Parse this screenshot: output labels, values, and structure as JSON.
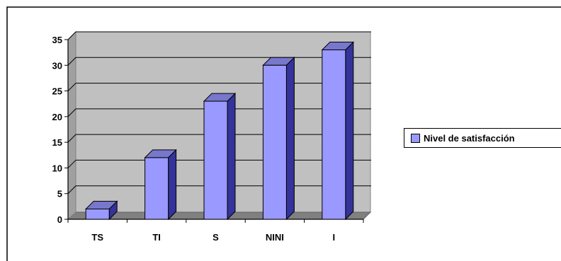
{
  "chart_data": {
    "type": "bar",
    "categories": [
      "TS",
      "TI",
      "S",
      "NINI",
      "I"
    ],
    "series": [
      {
        "name": "Nivel de satisfacción",
        "values": [
          2,
          12,
          23,
          30,
          33
        ]
      }
    ],
    "ylim": [
      0,
      35
    ],
    "yticks": [
      0,
      5,
      10,
      15,
      20,
      25,
      30,
      35
    ],
    "grid": true,
    "legend": "right",
    "colors": {
      "bar": "#9999ff",
      "bar_side": "#33339a",
      "bar_top": "#7777cc",
      "plot_bg": "#c0c0c0"
    }
  }
}
